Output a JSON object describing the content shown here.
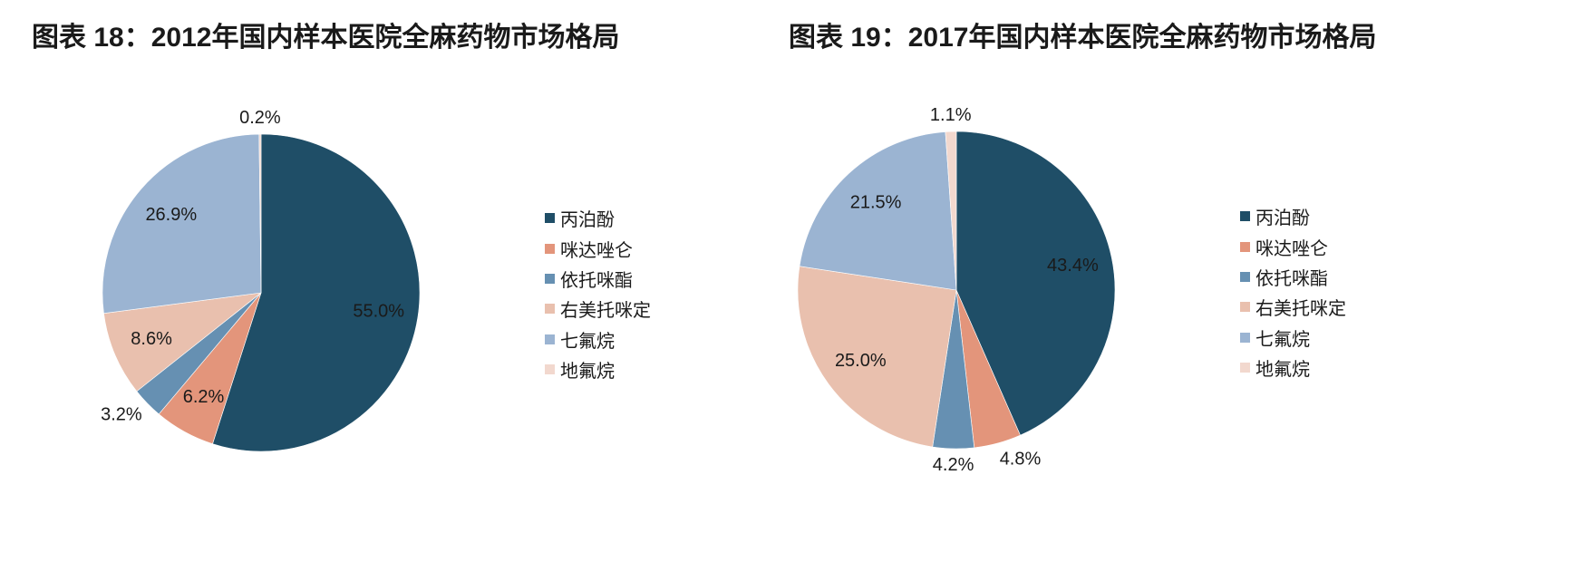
{
  "chart_data": [
    {
      "type": "pie",
      "title": "图表 18：2012年国内样本医院全麻药物市场格局",
      "categories": [
        "丙泊酚",
        "咪达唑仑",
        "依托咪酯",
        "右美托咪定",
        "七氟烷",
        "地氟烷"
      ],
      "values": [
        55.0,
        6.2,
        3.2,
        8.6,
        26.9,
        0.2
      ],
      "value_labels": [
        "55.0%",
        "6.2%",
        "3.2%",
        "8.6%",
        "26.9%",
        "0.2%"
      ],
      "colors": [
        "#1f4e67",
        "#e3957b",
        "#6690b2",
        "#e9c0ae",
        "#9bb4d2",
        "#f2d8ce"
      ],
      "legend": "right"
    },
    {
      "type": "pie",
      "title": "图表 19：2017年国内样本医院全麻药物市场格局",
      "categories": [
        "丙泊酚",
        "咪达唑仑",
        "依托咪酯",
        "右美托咪定",
        "七氟烷",
        "地氟烷"
      ],
      "values": [
        43.4,
        4.8,
        4.2,
        25.0,
        21.5,
        1.1
      ],
      "value_labels": [
        "43.4%",
        "4.8%",
        "4.2%",
        "25.0%",
        "21.5%",
        "1.1%"
      ],
      "colors": [
        "#1f4e67",
        "#e3957b",
        "#6690b2",
        "#e9c0ae",
        "#9bb4d2",
        "#f2d8ce"
      ],
      "legend": "right"
    }
  ]
}
